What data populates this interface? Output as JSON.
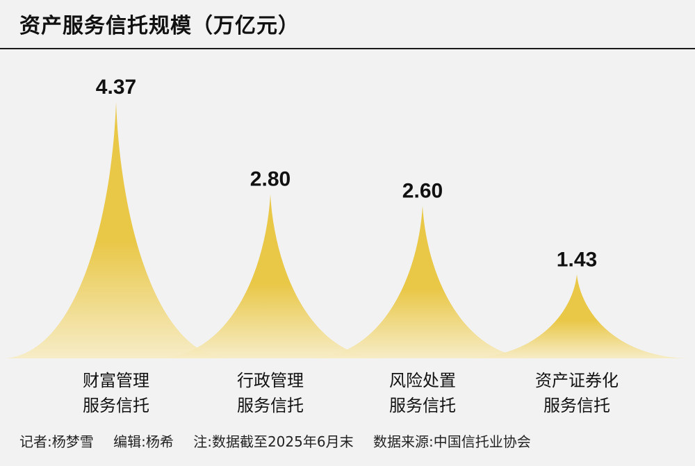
{
  "title": "资产服务信托规模（万亿元）",
  "footer": {
    "reporter": "记者:杨梦雪",
    "editor": "编辑:杨希",
    "note": "注:数据截至2025年6月末",
    "source": "数据来源:中国信托业协会"
  },
  "colors": {
    "peak_light": "#f7ecc4",
    "peak_dark": "#e8c43a",
    "background": "#f2f2f2"
  },
  "chart_data": {
    "type": "bar",
    "style": "peak",
    "categories": [
      [
        "财富管理",
        "服务信托"
      ],
      [
        "行政管理",
        "服务信托"
      ],
      [
        "风险处置",
        "服务信托"
      ],
      [
        "资产证券化",
        "服务信托"
      ]
    ],
    "values": [
      4.37,
      2.8,
      2.6,
      1.43
    ],
    "value_labels": [
      "4.37",
      "2.80",
      "2.60",
      "1.43"
    ],
    "ylim": [
      0,
      4.37
    ]
  }
}
